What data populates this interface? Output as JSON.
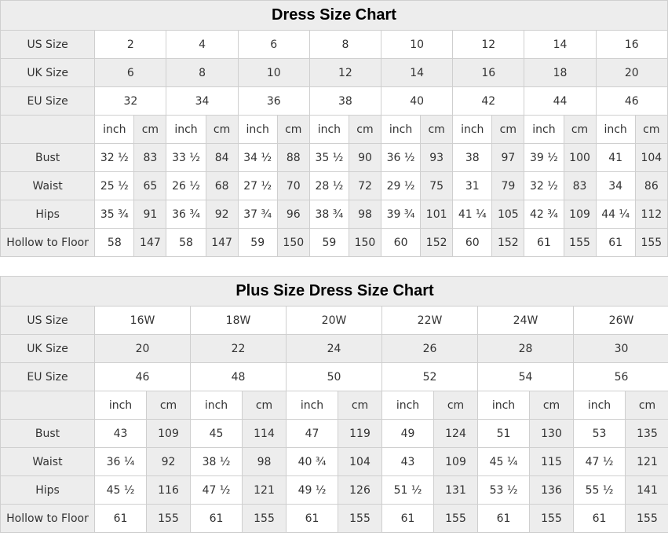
{
  "colors": {
    "cell_gray": "#ededed",
    "border": "#cfcfcf",
    "cell_text": "#333333",
    "title_text": "#000000",
    "background": "#ffffff"
  },
  "chart_data": [
    {
      "type": "table",
      "name": "dress-size-chart",
      "title": "Dress Size Chart",
      "units": {
        "inch": "inch",
        "cm": "cm"
      },
      "size_rows": [
        {
          "label": "US Size",
          "values": [
            "2",
            "4",
            "6",
            "8",
            "10",
            "12",
            "14",
            "16"
          ]
        },
        {
          "label": "UK Size",
          "values": [
            "6",
            "8",
            "10",
            "12",
            "14",
            "16",
            "18",
            "20"
          ]
        },
        {
          "label": "EU Size",
          "values": [
            "32",
            "34",
            "36",
            "38",
            "40",
            "42",
            "44",
            "46"
          ]
        }
      ],
      "measure_rows": [
        {
          "label": "Bust",
          "pairs": [
            [
              "32 ½",
              "83"
            ],
            [
              "33 ½",
              "84"
            ],
            [
              "34 ½",
              "88"
            ],
            [
              "35 ½",
              "90"
            ],
            [
              "36 ½",
              "93"
            ],
            [
              "38",
              "97"
            ],
            [
              "39 ½",
              "100"
            ],
            [
              "41",
              "104"
            ]
          ]
        },
        {
          "label": "Waist",
          "pairs": [
            [
              "25 ½",
              "65"
            ],
            [
              "26 ½",
              "68"
            ],
            [
              "27 ½",
              "70"
            ],
            [
              "28 ½",
              "72"
            ],
            [
              "29 ½",
              "75"
            ],
            [
              "31",
              "79"
            ],
            [
              "32 ½",
              "83"
            ],
            [
              "34",
              "86"
            ]
          ]
        },
        {
          "label": "Hips",
          "pairs": [
            [
              "35 ¾",
              "91"
            ],
            [
              "36 ¾",
              "92"
            ],
            [
              "37 ¾",
              "96"
            ],
            [
              "38 ¾",
              "98"
            ],
            [
              "39 ¾",
              "101"
            ],
            [
              "41 ¼",
              "105"
            ],
            [
              "42 ¾",
              "109"
            ],
            [
              "44 ¼",
              "112"
            ]
          ]
        },
        {
          "label": "Hollow to Floor",
          "pairs": [
            [
              "58",
              "147"
            ],
            [
              "58",
              "147"
            ],
            [
              "59",
              "150"
            ],
            [
              "59",
              "150"
            ],
            [
              "60",
              "152"
            ],
            [
              "60",
              "152"
            ],
            [
              "61",
              "155"
            ],
            [
              "61",
              "155"
            ]
          ]
        }
      ]
    },
    {
      "type": "table",
      "name": "plus-size-dress-size-chart",
      "title": "Plus Size Dress Size Chart",
      "units": {
        "inch": "inch",
        "cm": "cm"
      },
      "size_rows": [
        {
          "label": "US Size",
          "values": [
            "16W",
            "18W",
            "20W",
            "22W",
            "24W",
            "26W"
          ]
        },
        {
          "label": "UK Size",
          "values": [
            "20",
            "22",
            "24",
            "26",
            "28",
            "30"
          ]
        },
        {
          "label": "EU Size",
          "values": [
            "46",
            "48",
            "50",
            "52",
            "54",
            "56"
          ]
        }
      ],
      "measure_rows": [
        {
          "label": "Bust",
          "pairs": [
            [
              "43",
              "109"
            ],
            [
              "45",
              "114"
            ],
            [
              "47",
              "119"
            ],
            [
              "49",
              "124"
            ],
            [
              "51",
              "130"
            ],
            [
              "53",
              "135"
            ]
          ]
        },
        {
          "label": "Waist",
          "pairs": [
            [
              "36 ¼",
              "92"
            ],
            [
              "38 ½",
              "98"
            ],
            [
              "40 ¾",
              "104"
            ],
            [
              "43",
              "109"
            ],
            [
              "45 ¼",
              "115"
            ],
            [
              "47 ½",
              "121"
            ]
          ]
        },
        {
          "label": "Hips",
          "pairs": [
            [
              "45 ½",
              "116"
            ],
            [
              "47 ½",
              "121"
            ],
            [
              "49 ½",
              "126"
            ],
            [
              "51 ½",
              "131"
            ],
            [
              "53 ½",
              "136"
            ],
            [
              "55 ½",
              "141"
            ]
          ]
        },
        {
          "label": "Hollow to Floor",
          "pairs": [
            [
              "61",
              "155"
            ],
            [
              "61",
              "155"
            ],
            [
              "61",
              "155"
            ],
            [
              "61",
              "155"
            ],
            [
              "61",
              "155"
            ],
            [
              "61",
              "155"
            ]
          ]
        }
      ]
    }
  ]
}
